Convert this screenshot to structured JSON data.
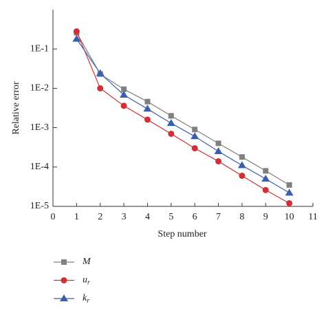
{
  "chart_data": {
    "type": "line",
    "xlabel": "Step number",
    "ylabel": "Relative error",
    "x": [
      1,
      2,
      3,
      4,
      5,
      6,
      7,
      8,
      9,
      10
    ],
    "series": [
      {
        "name": "M",
        "color": "#808080",
        "marker": "square",
        "values": [
          0.26,
          0.023,
          0.0095,
          0.0046,
          0.002,
          0.0009,
          0.0004,
          0.00018,
          8e-05,
          3.5e-05
        ]
      },
      {
        "name": "ur",
        "color": "#d03035",
        "marker": "circle",
        "values": [
          0.28,
          0.01,
          0.0036,
          0.0016,
          0.0007,
          0.0003,
          0.00014,
          6e-05,
          2.6e-05,
          1.2e-05
        ]
      },
      {
        "name": "kr",
        "color": "#3a5fb0",
        "marker": "triangle",
        "values": [
          0.18,
          0.024,
          0.0068,
          0.003,
          0.0013,
          0.0006,
          0.00025,
          0.00011,
          5e-05,
          2.2e-05
        ]
      }
    ],
    "xlim": [
      0,
      11
    ],
    "xticks": [
      0,
      1,
      2,
      3,
      4,
      5,
      6,
      7,
      8,
      9,
      10,
      11
    ],
    "ylim": [
      1e-05,
      1
    ],
    "log_y": true,
    "yticks": [
      {
        "value": 1e-05,
        "label": "1E-5"
      },
      {
        "value": 0.0001,
        "label": "1E-4"
      },
      {
        "value": 0.001,
        "label": "1E-3"
      },
      {
        "value": 0.01,
        "label": "1E-2"
      },
      {
        "value": 0.1,
        "label": "1E-1"
      }
    ],
    "grid": false,
    "legend": "below-left"
  }
}
